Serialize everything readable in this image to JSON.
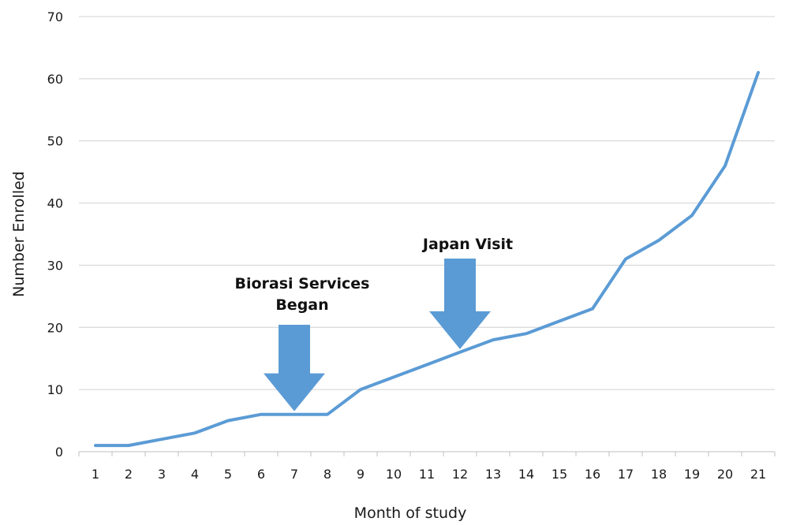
{
  "chart_data": {
    "type": "line",
    "title": "",
    "xlabel": "Month of study",
    "ylabel": "Number Enrolled",
    "categories": [
      "1",
      "2",
      "3",
      "4",
      "5",
      "6",
      "7",
      "8",
      "9",
      "10",
      "11",
      "12",
      "13",
      "14",
      "15",
      "16",
      "17",
      "18",
      "19",
      "20",
      "21"
    ],
    "series": [
      {
        "values": [
          1,
          1,
          2,
          3,
          5,
          6,
          6,
          6,
          10,
          12,
          14,
          16,
          18,
          19,
          21,
          23,
          31,
          34,
          38,
          46,
          61
        ]
      }
    ],
    "ylim": [
      0,
      70
    ],
    "yticks": [
      0,
      10,
      20,
      30,
      40,
      50,
      60,
      70
    ],
    "grid": true,
    "legend": "none",
    "annotations": [
      {
        "lines": [
          "Biorasi Services",
          "Began"
        ],
        "at_x": "7",
        "arrow": "down"
      },
      {
        "lines": [
          "Japan Visit"
        ],
        "at_x": "12",
        "arrow": "down"
      }
    ],
    "colors": {
      "line": "#5b9bd5",
      "arrow": "#5b9bd5",
      "grid": "#d0d0d0",
      "axis": "#bfbfbf"
    }
  }
}
